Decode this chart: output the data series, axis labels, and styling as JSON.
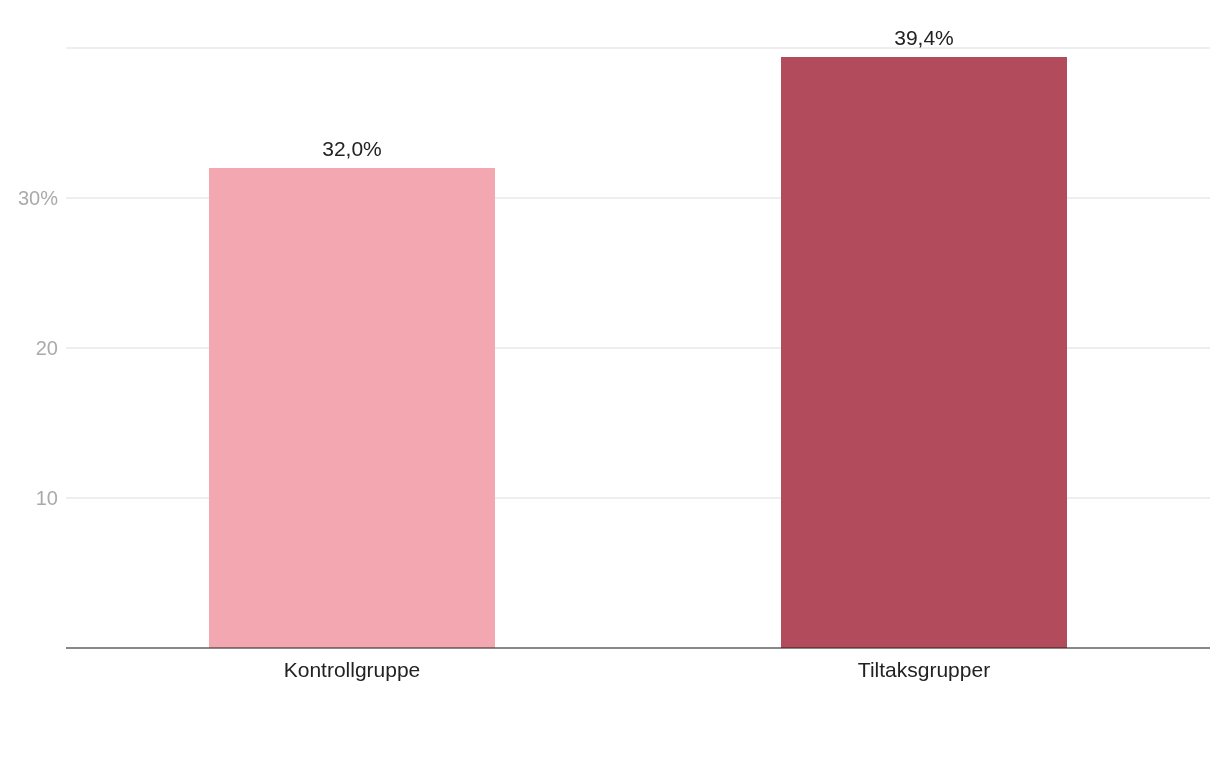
{
  "chart_data": {
    "type": "bar",
    "categories": [
      "Kontrollgruppe",
      "Tiltaksgrupper"
    ],
    "values": [
      32.0,
      39.4
    ],
    "colors": [
      "#f2a7b1",
      "#b24b5c"
    ],
    "value_labels": [
      "32,0%",
      "39,4%"
    ],
    "ylim": [
      0,
      40
    ],
    "yticks": [
      10,
      20,
      {
        "value": 30,
        "label": "30%"
      }
    ],
    "grid": "y"
  }
}
